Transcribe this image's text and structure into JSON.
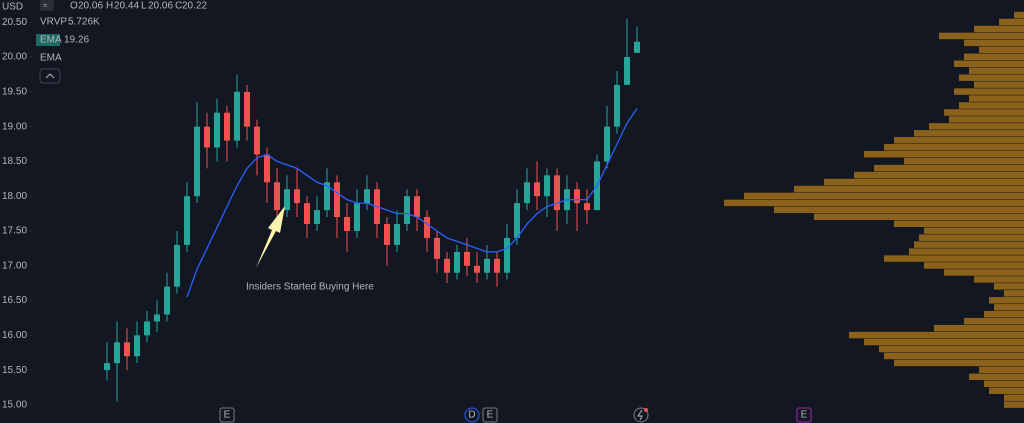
{
  "chart_data": {
    "type": "candlestick",
    "currency": "USD",
    "ohlc_letters": [
      "O",
      "H",
      "L",
      "C"
    ],
    "indicators": [
      {
        "name": "VRVP",
        "value": "5.726K"
      },
      {
        "name": "EMA"
      },
      {
        "name": "EMA"
      }
    ],
    "annotation": "Insiders Started Buying Here",
    "events": [
      "E",
      "D",
      "E",
      "E"
    ],
    "ylim": [
      14.74,
      20.82
    ],
    "yticks": [
      {
        "value": 15,
        "label": "15.00"
      },
      {
        "value": 15.5,
        "label": "15.50"
      },
      {
        "value": 16,
        "label": "16.00"
      },
      {
        "value": 16.5,
        "label": "16.50"
      },
      {
        "value": 17,
        "label": "17.00"
      },
      {
        "value": 17.5,
        "label": "17.50"
      },
      {
        "value": 18,
        "label": "18.00"
      },
      {
        "value": 18.5,
        "label": "18.50"
      },
      {
        "value": 19,
        "label": "19.00"
      },
      {
        "value": 19.5,
        "label": "19.50"
      },
      {
        "value": 20,
        "label": "20.00"
      },
      {
        "value": 20.5,
        "label": "20.50"
      }
    ],
    "up_color": "#26a69a",
    "down_color": "#ef5350",
    "open": [
      15.5,
      15.6,
      15.9,
      15.7,
      16.0,
      16.2,
      16.3,
      16.7,
      17.3,
      18.0,
      19.0,
      18.7,
      19.2,
      18.8,
      19.5,
      19.0,
      18.6,
      18.2,
      17.8,
      18.1,
      17.9,
      17.6,
      17.8,
      18.2,
      17.7,
      17.5,
      17.9,
      18.1,
      17.6,
      17.3,
      17.6,
      18.0,
      17.7,
      17.4,
      17.1,
      16.9,
      17.2,
      17.0,
      16.9,
      17.1,
      16.9,
      17.4,
      17.9,
      18.2,
      18.0,
      18.3,
      17.8,
      18.1,
      17.9,
      17.8,
      18.5,
      19.0,
      19.6,
      20.06
    ],
    "high": [
      15.9,
      16.2,
      16.1,
      16.2,
      16.35,
      16.5,
      16.9,
      17.5,
      18.2,
      19.35,
      19.2,
      19.4,
      19.3,
      19.75,
      19.6,
      19.1,
      18.7,
      18.4,
      18.3,
      18.4,
      18.0,
      18.0,
      18.4,
      18.3,
      17.9,
      18.1,
      18.3,
      18.2,
      17.7,
      17.8,
      18.1,
      18.1,
      17.8,
      17.5,
      17.2,
      17.3,
      17.4,
      17.2,
      17.3,
      17.2,
      17.6,
      18.1,
      18.4,
      18.5,
      18.4,
      18.4,
      18.3,
      18.2,
      18.1,
      18.6,
      19.3,
      19.8,
      20.55,
      20.44
    ],
    "low": [
      15.35,
      15.05,
      15.5,
      15.6,
      15.9,
      16.05,
      16.2,
      16.6,
      17.2,
      17.9,
      18.4,
      18.5,
      18.5,
      18.7,
      18.8,
      18.3,
      17.9,
      17.6,
      17.7,
      17.7,
      17.4,
      17.5,
      17.7,
      17.4,
      17.2,
      17.4,
      17.8,
      17.4,
      17.0,
      17.2,
      17.5,
      17.5,
      17.2,
      16.9,
      16.75,
      16.8,
      16.85,
      16.75,
      16.8,
      16.7,
      16.8,
      17.3,
      17.8,
      17.8,
      17.7,
      17.5,
      17.6,
      17.5,
      17.6,
      17.8,
      18.4,
      18.9,
      19.6,
      20.06
    ],
    "close": [
      15.6,
      15.9,
      15.7,
      16.0,
      16.2,
      16.3,
      16.7,
      17.3,
      18.0,
      19.0,
      18.7,
      19.2,
      18.8,
      19.5,
      19.0,
      18.6,
      18.2,
      17.8,
      18.1,
      17.9,
      17.6,
      17.8,
      18.2,
      17.7,
      17.5,
      17.9,
      18.1,
      17.6,
      17.3,
      17.6,
      18.0,
      17.7,
      17.4,
      17.1,
      16.9,
      17.2,
      17.0,
      16.9,
      17.1,
      16.9,
      17.4,
      17.9,
      18.2,
      18.0,
      18.3,
      17.8,
      18.1,
      17.9,
      17.8,
      18.5,
      19.0,
      19.6,
      20.0,
      20.22
    ],
    "ema": {
      "name": "EMA",
      "color": "#2962ff",
      "values": [
        null,
        null,
        null,
        null,
        null,
        null,
        null,
        null,
        16.55,
        16.95,
        17.25,
        17.55,
        17.85,
        18.15,
        18.4,
        18.55,
        18.6,
        18.5,
        18.45,
        18.4,
        18.3,
        18.2,
        18.15,
        18.05,
        17.95,
        17.9,
        17.9,
        17.85,
        17.8,
        17.75,
        17.75,
        17.7,
        17.6,
        17.5,
        17.4,
        17.35,
        17.3,
        17.25,
        17.2,
        17.2,
        17.25,
        17.4,
        17.6,
        17.75,
        17.85,
        17.9,
        17.95,
        17.95,
        17.95,
        18.15,
        18.45,
        18.75,
        19.05,
        19.26
      ]
    },
    "volume_profile": {
      "color": "#a0701a",
      "prices": [
        20.6,
        20.5,
        20.4,
        20.3,
        20.2,
        20.1,
        20.0,
        19.9,
        19.8,
        19.7,
        19.6,
        19.5,
        19.4,
        19.3,
        19.2,
        19.1,
        19.0,
        18.9,
        18.8,
        18.7,
        18.6,
        18.5,
        18.4,
        18.3,
        18.2,
        18.1,
        18.0,
        17.9,
        17.8,
        17.7,
        17.6,
        17.5,
        17.4,
        17.3,
        17.2,
        17.1,
        17.0,
        16.9,
        16.8,
        16.7,
        16.6,
        16.5,
        16.4,
        16.3,
        16.2,
        16.1,
        16.0,
        15.9,
        15.8,
        15.7,
        15.6,
        15.5,
        15.4,
        15.3,
        15.2,
        15.1,
        15.0
      ],
      "values": [
        10,
        25,
        50,
        85,
        60,
        45,
        60,
        70,
        55,
        65,
        50,
        70,
        55,
        65,
        80,
        75,
        95,
        110,
        130,
        140,
        160,
        120,
        150,
        170,
        200,
        230,
        280,
        300,
        250,
        210,
        130,
        100,
        105,
        110,
        115,
        140,
        100,
        80,
        50,
        30,
        20,
        35,
        30,
        40,
        60,
        90,
        175,
        160,
        145,
        140,
        130,
        45,
        55,
        40,
        35,
        20,
        20
      ]
    }
  }
}
